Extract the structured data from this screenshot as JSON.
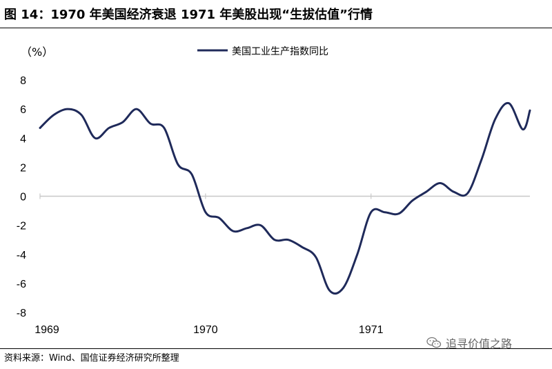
{
  "figure": {
    "title": "图  14：1970 年美国经济衰退 1971 年美股出现“生拔估值”行情",
    "source": "资料来源：Wind、国信证券经济研究所整理",
    "watermark": "追寻价值之路",
    "watermark_icon": "wechat-icon"
  },
  "chart_data": {
    "type": "line",
    "title": "",
    "xlabel": "",
    "ylabel": "（%）",
    "ylim": [
      -8,
      8
    ],
    "yticks": [
      8,
      6,
      4,
      2,
      0,
      -2,
      -4,
      -6,
      -8
    ],
    "xlim": [
      1969.0,
      1971.96
    ],
    "xticks": [
      {
        "value": 1969.0,
        "label": "1969"
      },
      {
        "value": 1970.0,
        "label": "1970"
      },
      {
        "value": 1971.0,
        "label": "1971"
      }
    ],
    "grid": false,
    "legend": {
      "position": "top-center",
      "entries": [
        "美国工业生产指数同比"
      ]
    },
    "series": [
      {
        "name": "美国工业生产指数同比",
        "color": "#1f2a5a",
        "x": [
          1969.0,
          1969.083,
          1969.167,
          1969.25,
          1969.333,
          1969.417,
          1969.5,
          1969.583,
          1969.667,
          1969.75,
          1969.833,
          1969.917,
          1970.0,
          1970.083,
          1970.167,
          1970.25,
          1970.333,
          1970.417,
          1970.5,
          1970.583,
          1970.667,
          1970.75,
          1970.833,
          1970.917,
          1971.0,
          1971.083,
          1971.167,
          1971.25,
          1971.333,
          1971.417,
          1971.5,
          1971.583,
          1971.667,
          1971.75,
          1971.833,
          1971.917,
          1971.96
        ],
        "values": [
          4.7,
          5.6,
          6.0,
          5.6,
          4.0,
          4.7,
          5.1,
          6.0,
          5.0,
          4.7,
          2.2,
          1.5,
          -1.1,
          -1.5,
          -2.4,
          -2.2,
          -2.0,
          -3.0,
          -3.0,
          -3.5,
          -4.2,
          -6.5,
          -6.3,
          -4.0,
          -1.1,
          -1.1,
          -1.2,
          -0.3,
          0.3,
          0.9,
          0.3,
          0.2,
          2.5,
          5.3,
          6.4,
          4.6,
          5.9
        ]
      }
    ]
  }
}
